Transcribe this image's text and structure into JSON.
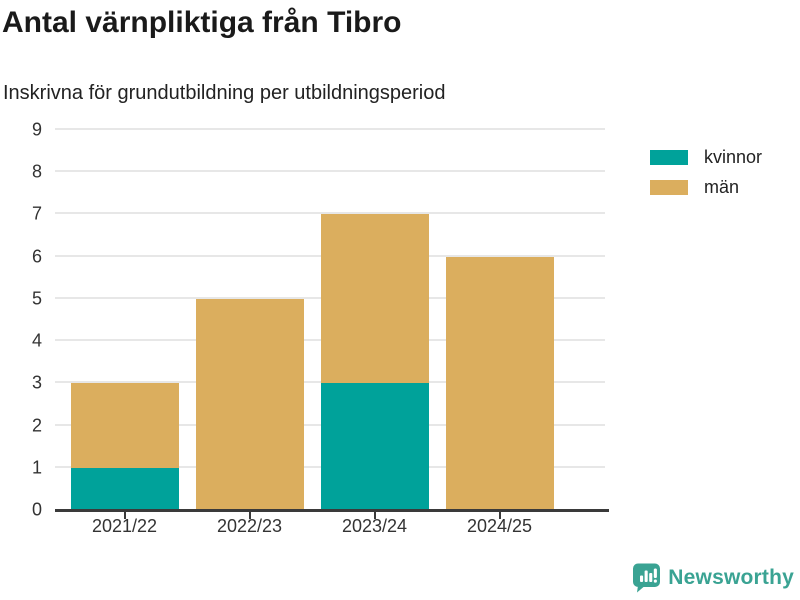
{
  "header": {
    "title": "Antal värnpliktiga från Tibro",
    "subtitle": "Inskrivna för grundutbildning per utbildningsperiod"
  },
  "chart_data": {
    "type": "bar",
    "stacked": true,
    "title": "Antal värnpliktiga från Tibro",
    "subtitle": "Inskrivna för grundutbildning per utbildningsperiod",
    "categories": [
      "2021/22",
      "2022/23",
      "2023/24",
      "2024/25"
    ],
    "series": [
      {
        "name": "kvinnor",
        "color": "#00a29a",
        "values": [
          1,
          0,
          3,
          0
        ]
      },
      {
        "name": "män",
        "color": "#dbae5e",
        "values": [
          2,
          5,
          4,
          6
        ]
      }
    ],
    "totals": [
      3,
      5,
      7,
      6
    ],
    "xlabel": "",
    "ylabel": "",
    "ylim": [
      0,
      9
    ],
    "yticks": [
      0,
      1,
      2,
      3,
      4,
      5,
      6,
      7,
      8,
      9
    ],
    "grid": "horizontal",
    "legend_position": "top-right"
  },
  "colors": {
    "grid": "#e7e7e7",
    "axis": "#3a3a3a",
    "tick_text": "#333333",
    "brand_teal": "#3aa393"
  },
  "footer": {
    "brand": "Newsworthy",
    "logo_icon": "newsworthy-speech-bubble-bar-chart-icon"
  }
}
